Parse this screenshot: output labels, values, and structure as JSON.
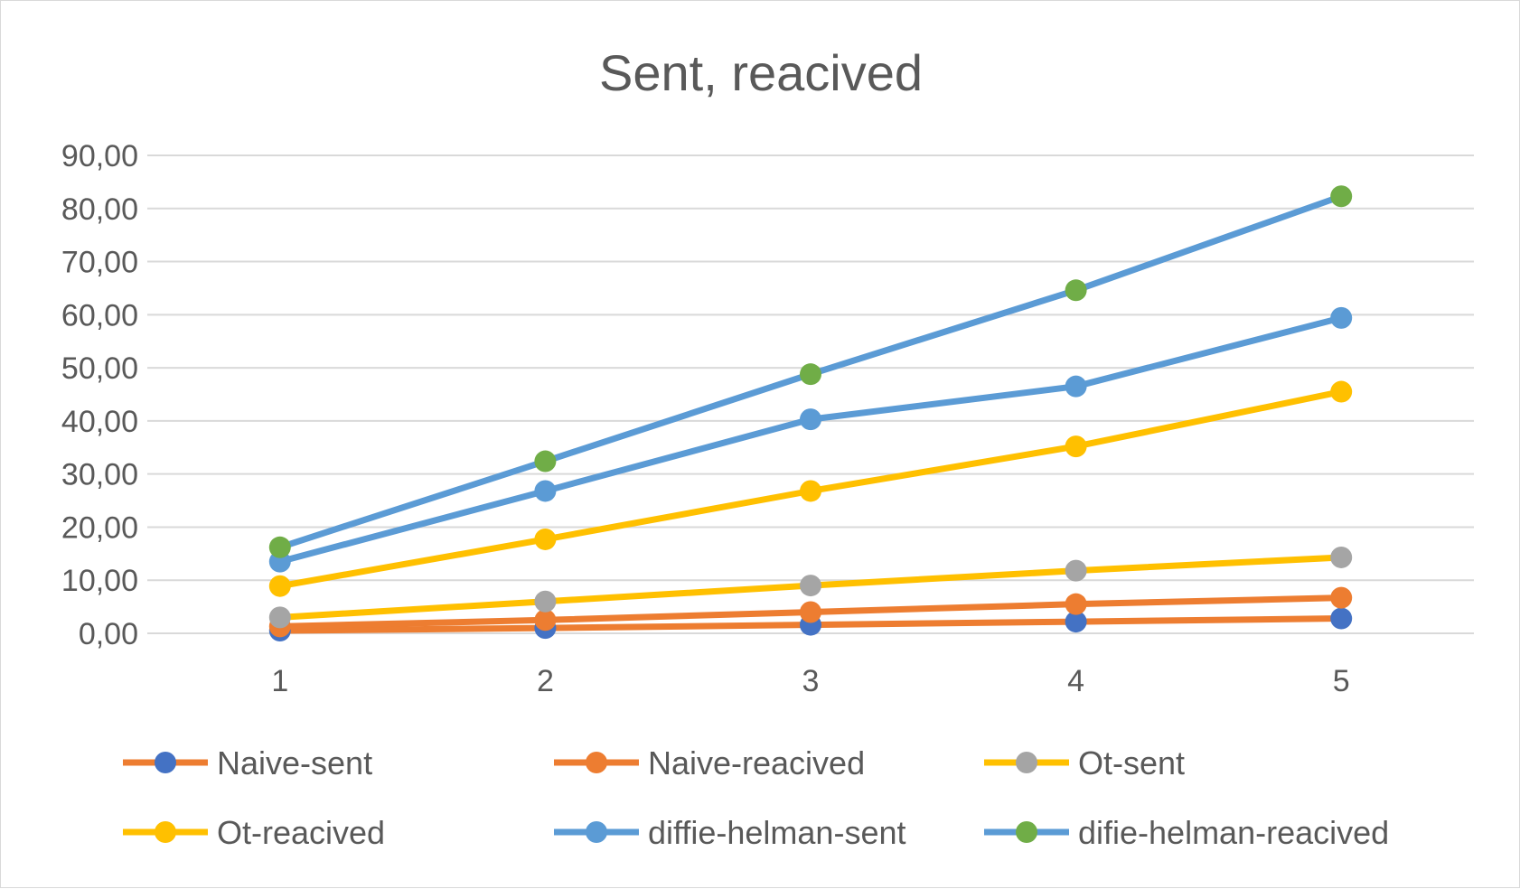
{
  "chart_data": {
    "type": "line",
    "title": "Sent, reacived",
    "categories": [
      "1",
      "2",
      "3",
      "4",
      "5"
    ],
    "ylim": [
      0,
      90
    ],
    "yticks": [
      "0,00",
      "10,00",
      "20,00",
      "30,00",
      "40,00",
      "50,00",
      "60,00",
      "70,00",
      "80,00",
      "90,00"
    ],
    "grid": true,
    "legend_position": "bottom",
    "series": [
      {
        "name": "Naive-sent",
        "values": [
          0.5,
          1.0,
          1.6,
          2.2,
          2.8
        ],
        "line_color": "#ED7D31",
        "marker_color": "#4472C4"
      },
      {
        "name": "Naive-reacived",
        "values": [
          1.3,
          2.5,
          4.0,
          5.5,
          6.7
        ],
        "line_color": "#ED7D31",
        "marker_color": "#ED7D31"
      },
      {
        "name": "Ot-sent",
        "values": [
          3.0,
          6.0,
          9.0,
          11.8,
          14.3
        ],
        "line_color": "#FFC000",
        "marker_color": "#A5A5A5"
      },
      {
        "name": "Ot-reacived",
        "values": [
          8.9,
          17.7,
          26.8,
          35.2,
          45.5
        ],
        "line_color": "#FFC000",
        "marker_color": "#FFC000"
      },
      {
        "name": "diffie-helman-sent",
        "values": [
          13.5,
          26.8,
          40.3,
          46.5,
          59.4
        ],
        "line_color": "#5B9BD5",
        "marker_color": "#5B9BD5"
      },
      {
        "name": "difie-helman-reacived",
        "values": [
          16.2,
          32.4,
          48.8,
          64.6,
          82.3
        ],
        "line_color": "#5B9BD5",
        "marker_color": "#70AD47"
      }
    ]
  }
}
